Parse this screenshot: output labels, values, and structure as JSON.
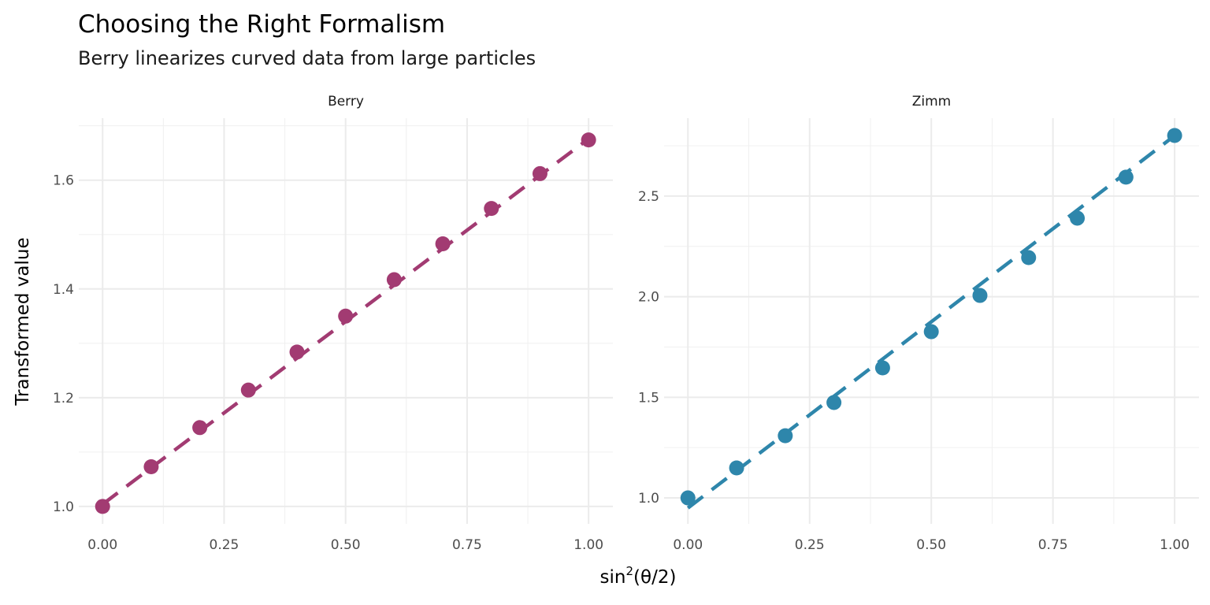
{
  "chart_data": {
    "type": "scatter",
    "title": "Choosing the Right Formalism",
    "subtitle": "Berry linearizes curved data from large particles",
    "xlabel": "sin²(θ/2)",
    "xlabel_parts": {
      "base": "sin",
      "sup": "2",
      "rest": "(θ/2)"
    },
    "ylabel": "Transformed value",
    "grid": true,
    "panels": [
      {
        "name": "Berry",
        "color": "#A23B72",
        "x": [
          0.0,
          0.1,
          0.2,
          0.3,
          0.4,
          0.5,
          0.6,
          0.7,
          0.8,
          0.9,
          1.0
        ],
        "y": [
          1.0,
          1.073,
          1.145,
          1.214,
          1.284,
          1.35,
          1.417,
          1.483,
          1.548,
          1.612,
          1.674
        ],
        "fit": {
          "x": [
            0,
            1
          ],
          "y": [
            1.004,
            1.676
          ]
        },
        "xlim": [
          -0.049,
          1.05
        ],
        "ylim": [
          0.968,
          1.714
        ],
        "xticks": [
          0,
          0.25,
          0.5,
          0.75,
          1.0
        ],
        "xtick_labels": [
          "0.00",
          "0.25",
          "0.50",
          "0.75",
          "1.00"
        ],
        "yticks": [
          1.0,
          1.2,
          1.4,
          1.6
        ],
        "ytick_labels": [
          "1.0",
          "1.2",
          "1.4",
          "1.6"
        ],
        "yminor": [
          1.1,
          1.3,
          1.5,
          1.7
        ]
      },
      {
        "name": "Zimm",
        "color": "#2E86AB",
        "x": [
          0.0,
          0.1,
          0.2,
          0.3,
          0.4,
          0.5,
          0.6,
          0.7,
          0.8,
          0.9,
          1.0
        ],
        "y": [
          1.0,
          1.149,
          1.309,
          1.474,
          1.646,
          1.826,
          2.006,
          2.194,
          2.39,
          2.594,
          2.801
        ],
        "fit": {
          "x": [
            0,
            1
          ],
          "y": [
            0.95,
            2.8
          ]
        },
        "xlim": [
          -0.049,
          1.05
        ],
        "ylim": [
          0.871,
          2.887
        ],
        "xticks": [
          0,
          0.25,
          0.5,
          0.75,
          1.0
        ],
        "xtick_labels": [
          "0.00",
          "0.25",
          "0.50",
          "0.75",
          "1.00"
        ],
        "yticks": [
          1.0,
          1.5,
          2.0,
          2.5
        ],
        "ytick_labels": [
          "1.0",
          "1.5",
          "2.0",
          "2.5"
        ],
        "yminor": [
          1.25,
          1.75,
          2.25,
          2.75
        ]
      }
    ]
  }
}
